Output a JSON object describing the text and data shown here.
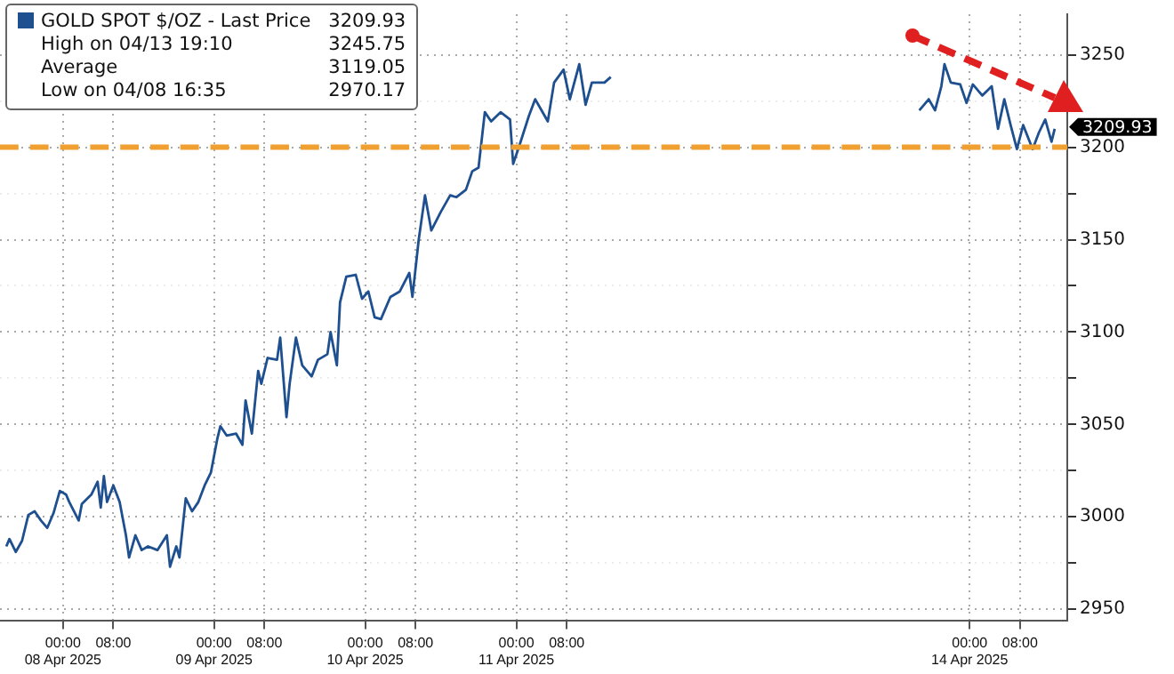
{
  "chart_data": {
    "type": "line",
    "legend": "top left",
    "grid": true,
    "marker": "none",
    "line_style": "solid",
    "annotations": [
      "3209.93",
      "High on 04/13 19:10 3245.75",
      "Average 3119.05",
      "Low on 04/08 16:35 2970.17",
      "3209.93"
    ],
    "x": [
      "2025-04-07T15:00",
      "2025-04-07T15:30",
      "2025-04-07T16:30",
      "2025-04-07T17:30",
      "2025-04-07T18:30",
      "2025-04-07T19:30",
      "2025-04-07T20:30",
      "2025-04-07T21:30",
      "2025-04-07T22:30",
      "2025-04-07T23:30",
      "2025-04-08T00:30",
      "2025-04-08T01:00",
      "2025-04-08T02:30",
      "2025-04-08T03:00",
      "2025-04-08T04:30",
      "2025-04-08T05:30",
      "2025-04-08T06:00",
      "2025-04-08T06:30",
      "2025-04-08T07:00",
      "2025-04-08T08:00",
      "2025-04-08T09:00",
      "2025-04-08T10:00",
      "2025-04-08T10:30",
      "2025-04-08T11:30",
      "2025-04-08T12:30",
      "2025-04-08T13:30",
      "2025-04-08T15:00",
      "2025-04-08T16:30",
      "2025-04-08T17:00",
      "2025-04-08T18:00",
      "2025-04-08T18:30",
      "2025-04-08T19:30",
      "2025-04-08T20:30",
      "2025-04-08T21:30",
      "2025-04-08T22:30",
      "2025-04-08T23:30",
      "2025-04-09T00:30",
      "2025-04-09T01:00",
      "2025-04-09T02:00",
      "2025-04-09T03:30",
      "2025-04-09T04:30",
      "2025-04-09T05:00",
      "2025-04-09T06:00",
      "2025-04-09T07:00",
      "2025-04-09T07:30",
      "2025-04-09T08:30",
      "2025-04-09T10:00",
      "2025-04-09T10:30",
      "2025-04-09T11:30",
      "2025-04-09T12:00",
      "2025-04-09T13:00",
      "2025-04-09T14:00",
      "2025-04-09T15:30",
      "2025-04-09T16:30",
      "2025-04-09T18:00",
      "2025-04-09T18:30",
      "2025-04-09T19:30",
      "2025-04-09T20:00",
      "2025-04-09T21:00",
      "2025-04-09T22:30",
      "2025-04-09T23:30",
      "2025-04-10T00:30",
      "2025-04-10T01:30",
      "2025-04-10T02:30",
      "2025-04-10T04:00",
      "2025-04-10T05:30",
      "2025-04-10T07:00",
      "2025-04-10T07:30",
      "2025-04-10T08:30",
      "2025-04-10T09:30",
      "2025-04-10T10:30",
      "2025-04-10T12:00",
      "2025-04-10T13:30",
      "2025-04-10T14:30",
      "2025-04-10T16:00",
      "2025-04-10T17:00",
      "2025-04-10T18:00",
      "2025-04-10T19:00",
      "2025-04-10T20:00",
      "2025-04-10T21:30",
      "2025-04-10T23:00",
      "2025-04-10T23:30",
      "2025-04-11T00:30",
      "2025-04-11T02:00",
      "2025-04-11T03:00",
      "2025-04-11T04:00",
      "2025-04-11T05:00",
      "2025-04-11T06:00",
      "2025-04-11T07:30",
      "2025-04-11T08:30",
      "2025-04-11T10:00",
      "2025-04-11T11:00",
      "2025-04-11T12:00",
      "2025-04-11T14:00",
      "2025-04-11T15:00",
      "2025-04-12T12:00",
      "2025-04-13T16:00",
      "2025-04-13T17:30",
      "2025-04-13T18:30",
      "2025-04-13T19:30",
      "2025-04-13T20:00",
      "2025-04-13T21:00",
      "2025-04-13T22:30",
      "2025-04-13T23:30",
      "2025-04-14T00:30",
      "2025-04-14T02:00",
      "2025-04-14T03:30",
      "2025-04-14T04:30",
      "2025-04-14T05:30",
      "2025-04-14T06:30",
      "2025-04-14T07:30",
      "2025-04-14T08:30",
      "2025-04-14T10:00",
      "2025-04-14T11:00",
      "2025-04-14T12:00",
      "2025-04-14T13:00",
      "2025-04-14T13:30"
    ],
    "series": [
      {
        "name": "GOLD SPOT $/OZ - Last Price",
        "color": "#1e4f8f",
        "values": [
          2984,
          2988,
          2981,
          2987,
          3001,
          3003,
          2998,
          2994,
          3002,
          3014,
          3012,
          3008,
          2998,
          3007,
          3012,
          3019,
          3005,
          3022,
          3008,
          3017,
          3008,
          2990,
          2978,
          2990,
          2982,
          2984,
          2982,
          2990,
          2973,
          2984,
          2978,
          3010,
          3003,
          3008,
          3017,
          3024,
          3042,
          3049,
          3044,
          3045,
          3039,
          3063,
          3045,
          3079,
          3072,
          3086,
          3085,
          3097,
          3054,
          3072,
          3097,
          3082,
          3076,
          3085,
          3088,
          3100,
          3082,
          3116,
          3130,
          3131,
          3118,
          3122,
          3108,
          3107,
          3119,
          3122,
          3132,
          3119,
          3150,
          3174,
          3155,
          3165,
          3174,
          3173,
          3177,
          3187,
          3189,
          3219,
          3214,
          3219,
          3215,
          3191,
          3201,
          3217,
          3226,
          3220,
          3214,
          3235,
          3242,
          3226,
          3245,
          3223,
          3235,
          3235,
          3238,
          null,
          3220,
          3226,
          3220,
          3233,
          3245,
          3235,
          3234,
          3224,
          3234,
          3228,
          3233,
          3210,
          3226,
          3212,
          3199,
          3212,
          3199,
          3208,
          3215,
          3203,
          3210
        ]
      }
    ],
    "ref_lines": [
      {
        "axis": "y",
        "value": 3200,
        "color": "#f0a030",
        "line_style": "dashed"
      }
    ],
    "xlim": [
      "2025-04-07T14:00",
      "2025-04-14T15:30"
    ],
    "xticks": [
      {
        "value": "2025-04-08T00:00",
        "label": "00:00\n08 Apr 2025"
      },
      {
        "value": "2025-04-08T08:00",
        "label": "08:00"
      },
      {
        "value": "2025-04-09T00:00",
        "label": "00:00\n09 Apr 2025"
      },
      {
        "value": "2025-04-09T08:00",
        "label": "08:00"
      },
      {
        "value": "2025-04-10T00:00",
        "label": "00:00\n10 Apr 2025"
      },
      {
        "value": "2025-04-10T08:00",
        "label": "08:00"
      },
      {
        "value": "2025-04-11T00:00",
        "label": "00:00\n11 Apr 2025"
      },
      {
        "value": "2025-04-11T08:00",
        "label": "08:00"
      },
      {
        "value": "2025-04-14T00:00",
        "label": "00:00\n14 Apr 2025"
      },
      {
        "value": "2025-04-14T08:00",
        "label": "08:00"
      }
    ],
    "ylim": [
      2944,
      3272
    ],
    "yticks": [
      2950,
      {
        "value": 2975,
        "label": null
      },
      3000,
      {
        "value": 3025,
        "label": null
      },
      3050,
      {
        "value": 3075,
        "label": null
      },
      3100,
      {
        "value": 3125,
        "label": null
      },
      3150,
      {
        "value": 3175,
        "label": null
      },
      3200,
      {
        "value": 3225,
        "label": null
      },
      3250
    ]
  }
}
